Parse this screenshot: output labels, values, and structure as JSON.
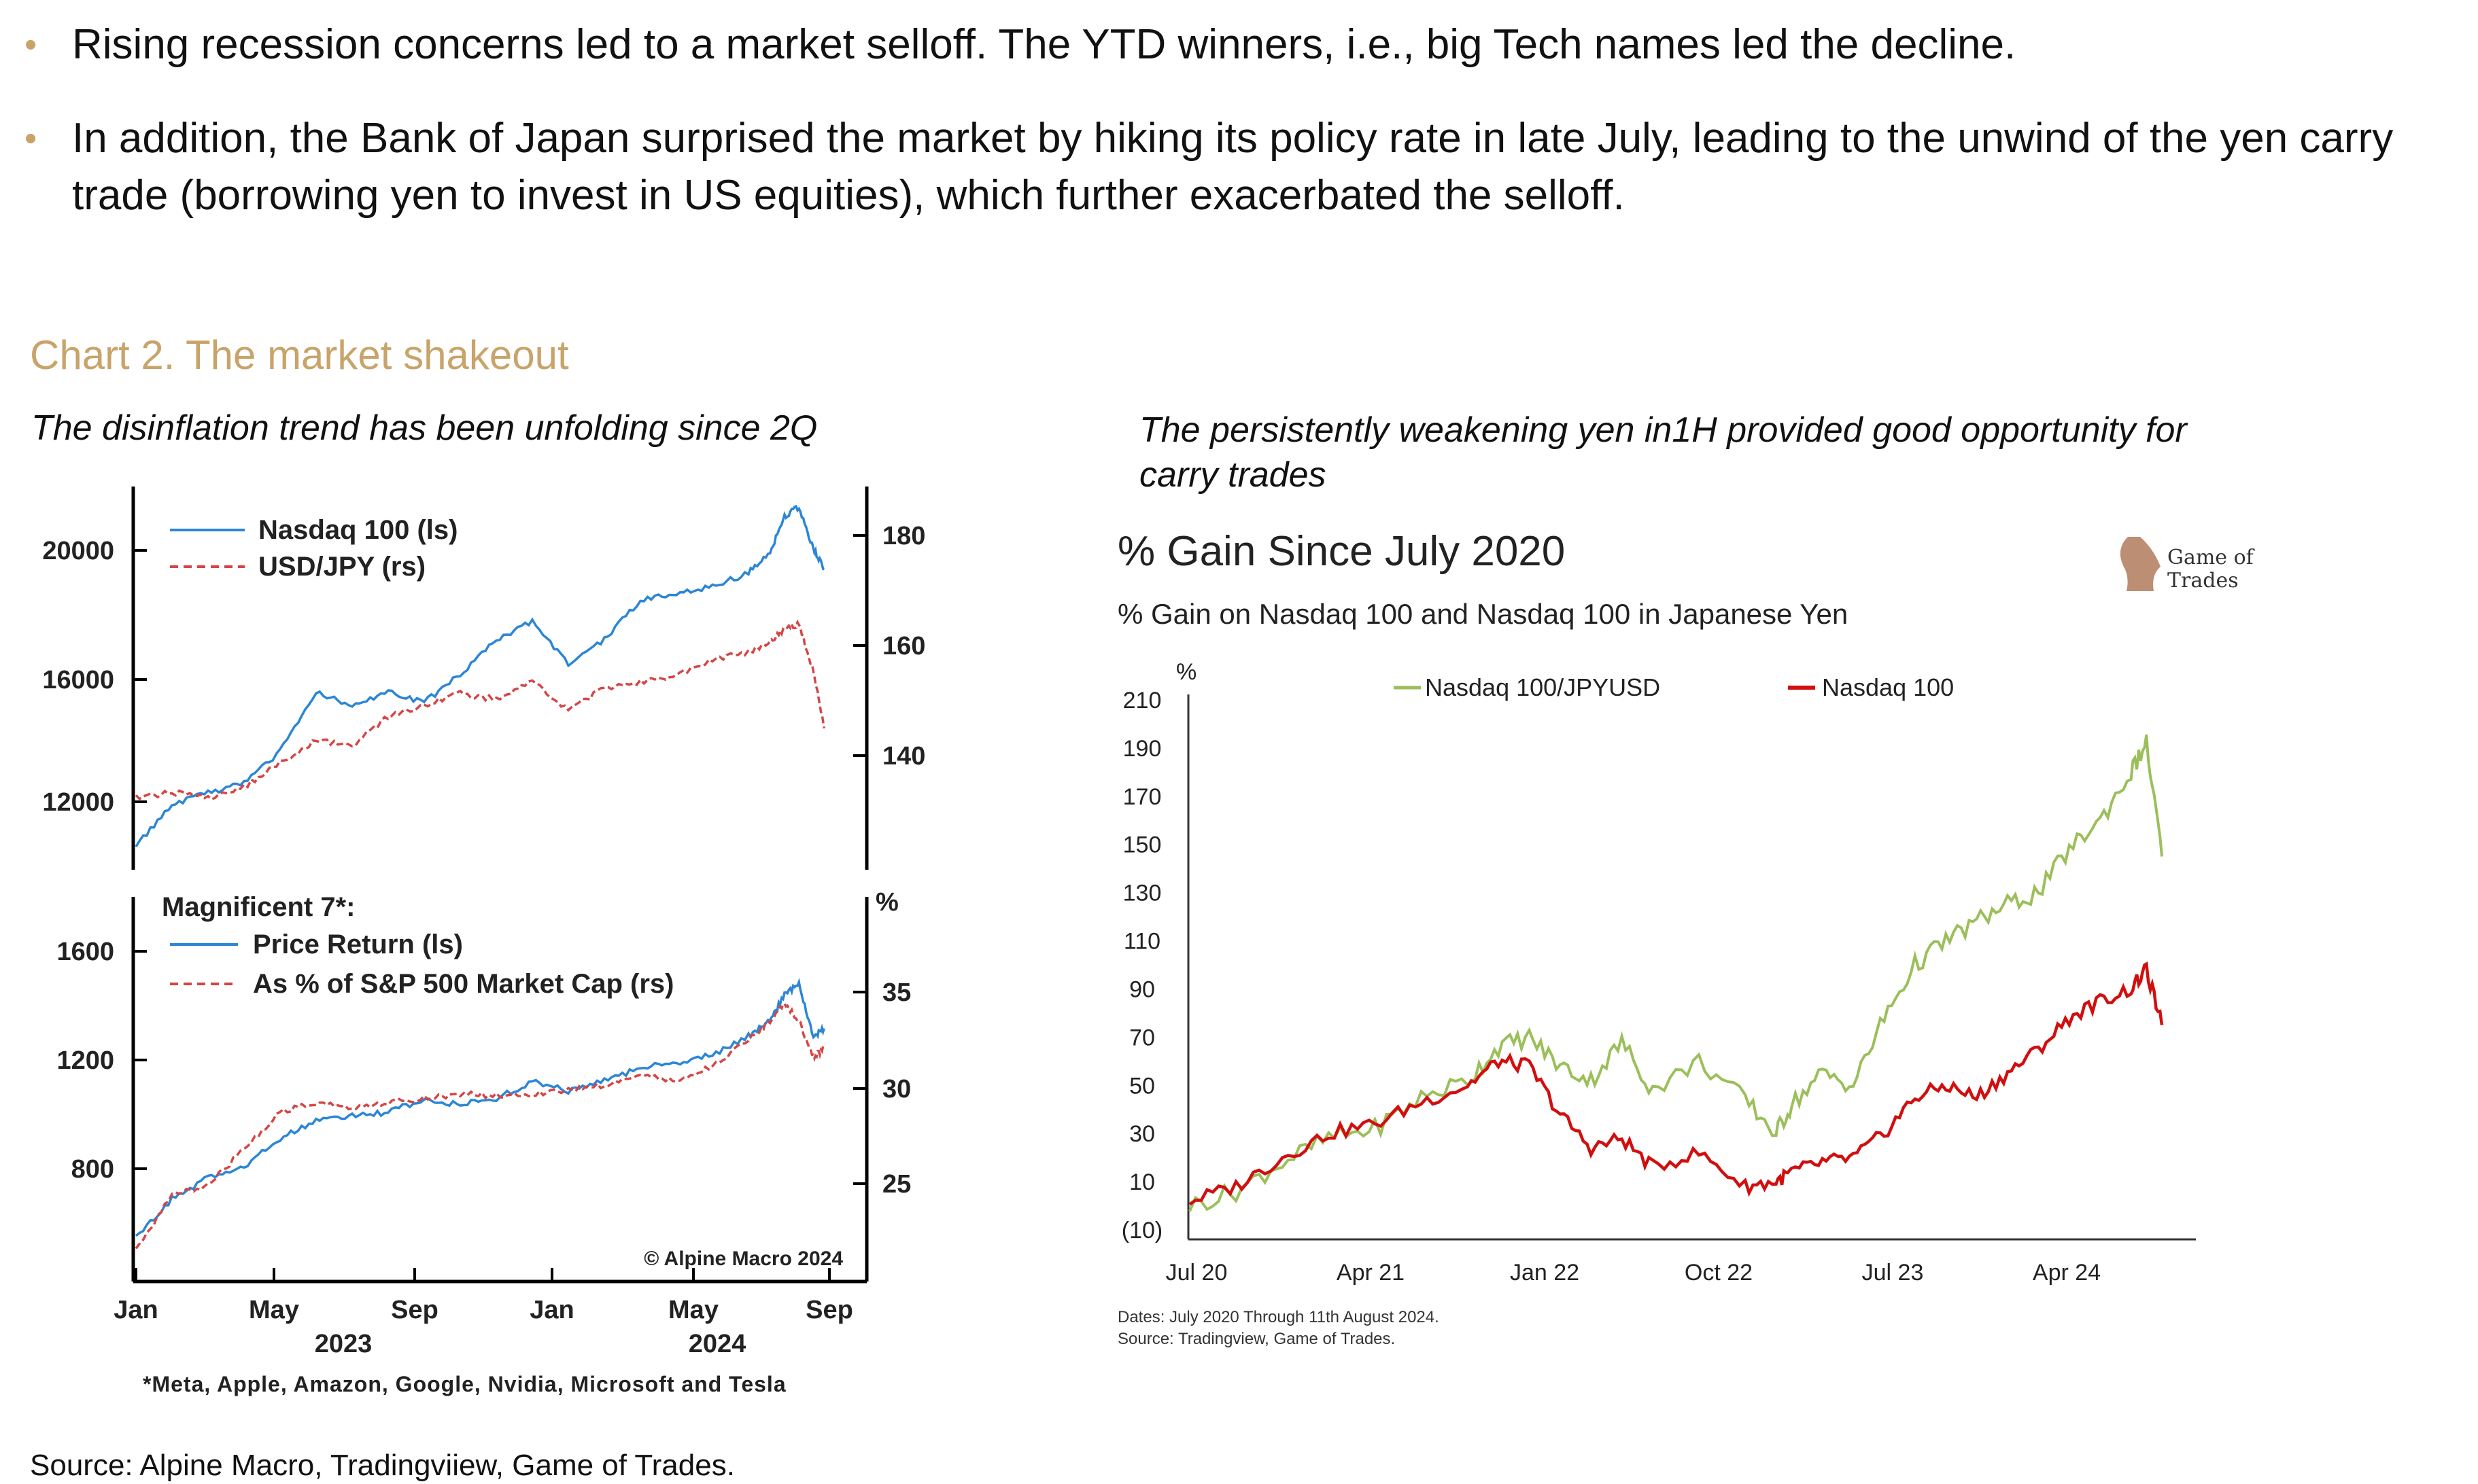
{
  "bullets": [
    "Rising recession concerns led to a market selloff. The YTD winners, i.e., big Tech names led the decline.",
    "In addition, the Bank of Japan surprised the market by hiking its policy rate in late July, leading to the unwind of the yen carry trade (borrowing yen to invest in US equities), which further exacerbated the selloff."
  ],
  "chart_heading": "Chart 2. The market shakeout",
  "left_caption": "The disinflation trend has been unfolding since 2Q",
  "right_caption": "The persistently weakening yen in1H provided good opportunity for carry trades",
  "source": "Source: Alpine Macro, Tradingviiew, Game of Trades.",
  "colors": {
    "gold": "#c8a46a",
    "blue": "#2b86d6",
    "red_dash": "#d64545",
    "green": "#9bbf5a",
    "red": "#d10f0f"
  },
  "chart_data": [
    {
      "type": "line",
      "id": "nasdaq-usdjpy",
      "legend": [
        "Nasdaq 100 (ls)",
        "USD/JPY (rs)"
      ],
      "left_ticks": [
        "20000",
        "16000",
        "12000"
      ],
      "right_ticks": [
        "180",
        "160",
        "140"
      ],
      "ylim_left": [
        10500,
        20800
      ],
      "ylim_right": [
        120,
        182
      ],
      "series": [
        {
          "name": "Nasdaq 100 (ls)",
          "axis": "left",
          "x": [
            0,
            0.05,
            0.1,
            0.15,
            0.2,
            0.25,
            0.3,
            0.35,
            0.4,
            0.45,
            0.5,
            0.55,
            0.6,
            0.65,
            0.7,
            0.75,
            0.8,
            0.85,
            0.88,
            0.9,
            0.92,
            0.94,
            0.955
          ],
          "values": [
            10800,
            12000,
            12300,
            12600,
            13500,
            15200,
            14800,
            15200,
            14900,
            15700,
            16700,
            17200,
            16000,
            16700,
            17800,
            18000,
            18200,
            18600,
            19200,
            20200,
            20500,
            19300,
            18700
          ]
        },
        {
          "name": "USD/JPY (rs)",
          "axis": "right",
          "x": [
            0,
            0.05,
            0.1,
            0.15,
            0.2,
            0.25,
            0.3,
            0.35,
            0.4,
            0.45,
            0.5,
            0.55,
            0.6,
            0.65,
            0.7,
            0.75,
            0.8,
            0.85,
            0.88,
            0.9,
            0.92,
            0.94,
            0.955
          ],
          "values": [
            130,
            131,
            130,
            132,
            136,
            140,
            139,
            144,
            146,
            148,
            147,
            150,
            145,
            149,
            150,
            151,
            154,
            155,
            157,
            159,
            160,
            152,
            142
          ]
        }
      ]
    },
    {
      "type": "line",
      "id": "mag7",
      "legend_title": "Magnificent 7*:",
      "legend": [
        "Price Return (ls)",
        "As % of S&P 500 Market Cap (rs)"
      ],
      "left_ticks": [
        "1600",
        "1200",
        "800"
      ],
      "right_ticks": [
        "35",
        "30",
        "25"
      ],
      "right_unit": "%",
      "x_ticks": [
        "Jan",
        "May",
        "Sep",
        "Jan",
        "May",
        "Sep"
      ],
      "x_years": [
        "2023",
        "2024"
      ],
      "ylim_left": [
        400,
        1800
      ],
      "ylim_right": [
        20,
        40
      ],
      "series": [
        {
          "name": "Price Return (ls)",
          "axis": "left",
          "x": [
            0,
            0.05,
            0.1,
            0.15,
            0.2,
            0.25,
            0.3,
            0.35,
            0.4,
            0.45,
            0.5,
            0.55,
            0.6,
            0.65,
            0.7,
            0.75,
            0.8,
            0.85,
            0.88,
            0.9,
            0.92,
            0.94,
            0.955
          ],
          "values": [
            550,
            700,
            780,
            820,
            930,
            1000,
            1020,
            1030,
            1080,
            1060,
            1080,
            1150,
            1110,
            1150,
            1200,
            1220,
            1250,
            1320,
            1380,
            1480,
            1520,
            1320,
            1350
          ]
        },
        {
          "name": "As % of S&P 500 Market Cap (rs)",
          "axis": "right",
          "x": [
            0,
            0.05,
            0.1,
            0.15,
            0.2,
            0.25,
            0.3,
            0.35,
            0.4,
            0.45,
            0.5,
            0.55,
            0.6,
            0.65,
            0.7,
            0.75,
            0.8,
            0.85,
            0.88,
            0.9,
            0.92,
            0.94,
            0.955
          ],
          "values": [
            21.5,
            24.5,
            25,
            27,
            29,
            29.5,
            29.3,
            29.5,
            29.8,
            30,
            29.9,
            30,
            30.2,
            30.5,
            31,
            30.7,
            31.5,
            33,
            34,
            35,
            34,
            32,
            32.5
          ]
        }
      ],
      "footnote": "*Meta, Apple, Amazon, Google, Nvidia, Microsoft and Tesla",
      "copyright": "© Alpine Macro 2024"
    },
    {
      "type": "line",
      "id": "gain-since-2020",
      "title": "% Gain Since July 2020",
      "subtitle": "% Gain on Nasdaq 100 and Nasdaq 100 in Japanese Yen",
      "ylabel": "%",
      "logo_line1": "Game of",
      "logo_line2": "Trades",
      "y_ticks": [
        "210",
        "190",
        "170",
        "150",
        "130",
        "110",
        "90",
        "70",
        "50",
        "30",
        "10",
        "(10)"
      ],
      "ylim": [
        -10,
        210
      ],
      "x_ticks": [
        "Jul 20",
        "Apr 21",
        "Jan 22",
        "Oct 22",
        "Jul 23",
        "Apr 24"
      ],
      "note_dates": "Dates: July 2020 Through 11th August 2024.",
      "note_source": "Source: Tradingview, Game of Trades.",
      "series": [
        {
          "name": "Nasdaq 100/JPYUSD",
          "x": [
            0,
            3,
            6,
            9,
            12,
            15,
            18,
            20,
            22,
            24,
            26,
            28,
            30,
            33,
            36,
            38,
            39,
            41,
            43,
            45,
            47,
            49,
            51,
            53,
            55,
            57,
            59,
            61,
            62,
            63
          ],
          "values": [
            0,
            6,
            18,
            28,
            32,
            45,
            52,
            66,
            70,
            58,
            52,
            68,
            48,
            60,
            44,
            30,
            42,
            55,
            50,
            78,
            100,
            110,
            118,
            125,
            130,
            148,
            160,
            180,
            192,
            145
          ]
        },
        {
          "name": "Nasdaq 100",
          "x": [
            0,
            3,
            6,
            9,
            12,
            15,
            18,
            20,
            22,
            24,
            26,
            28,
            30,
            33,
            36,
            38,
            39,
            41,
            43,
            45,
            47,
            49,
            51,
            53,
            55,
            57,
            59,
            61,
            62,
            63
          ],
          "values": [
            2,
            8,
            20,
            30,
            34,
            43,
            50,
            60,
            58,
            38,
            24,
            28,
            16,
            22,
            8,
            10,
            14,
            18,
            20,
            30,
            45,
            50,
            45,
            55,
            65,
            78,
            85,
            90,
            98,
            75
          ]
        }
      ]
    }
  ]
}
